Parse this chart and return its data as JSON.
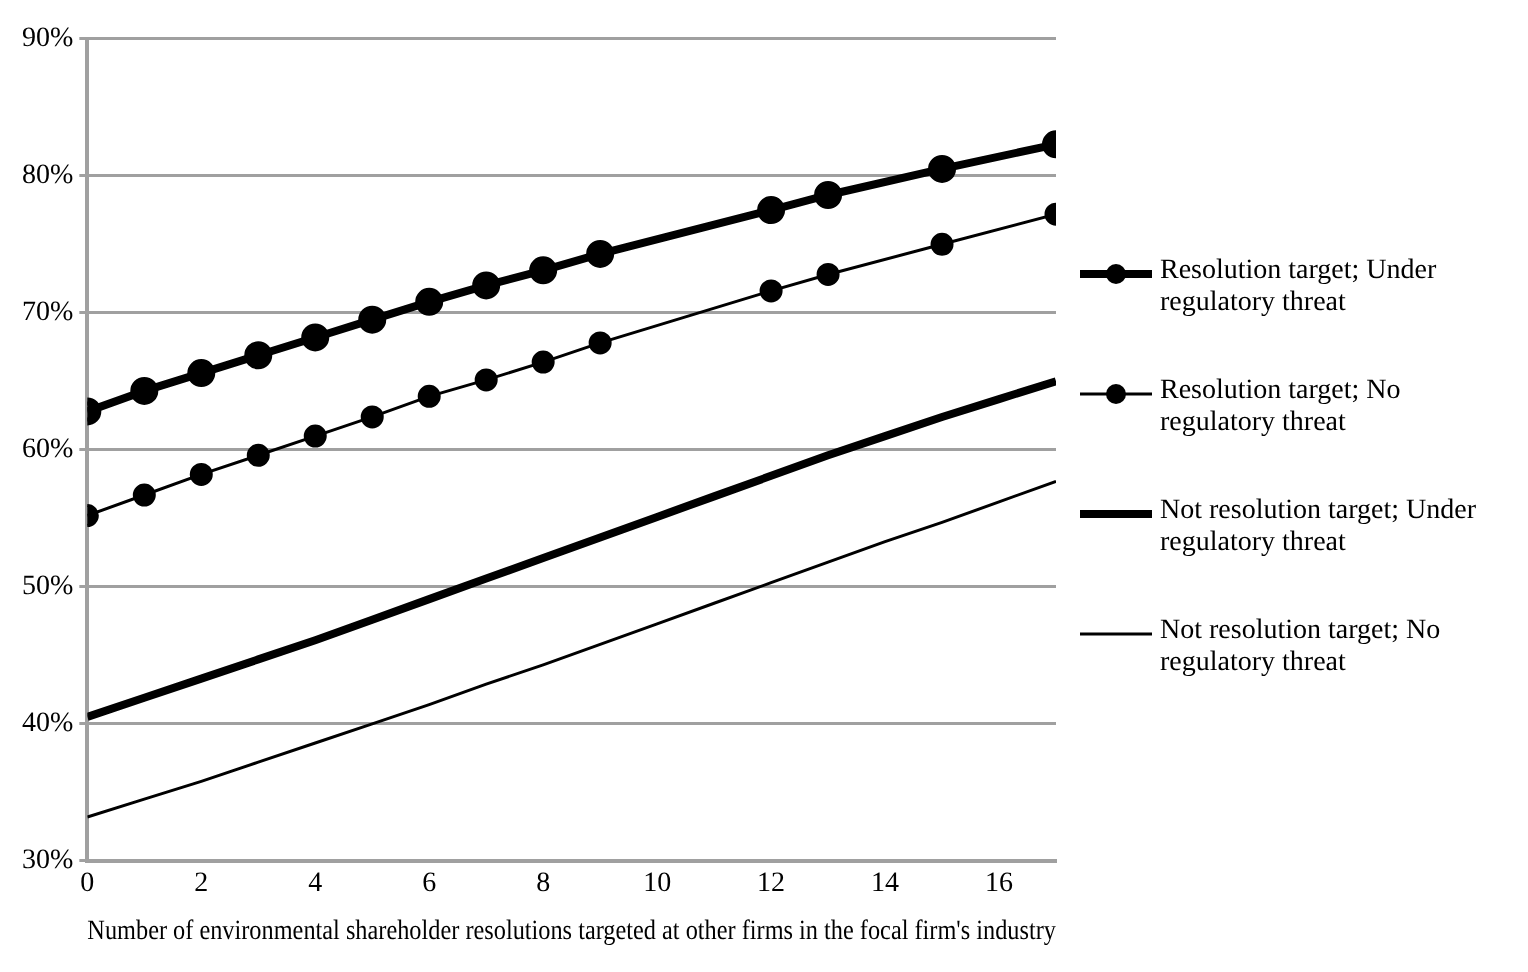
{
  "chart_data": {
    "type": "line",
    "xlabel": "Number of environmental shareholder resolutions targeted at other firms in the focal firm's industry",
    "xlim": [
      0,
      17
    ],
    "xticks": [
      0,
      2,
      4,
      6,
      8,
      10,
      12,
      14,
      16
    ],
    "ylim": [
      30,
      90
    ],
    "yticks": [
      {
        "value": 30,
        "label": "30%"
      },
      {
        "value": 40,
        "label": "40%"
      },
      {
        "value": 50,
        "label": "50%"
      },
      {
        "value": 60,
        "label": "60%"
      },
      {
        "value": 70,
        "label": "70%"
      },
      {
        "value": 80,
        "label": "80%"
      },
      {
        "value": 90,
        "label": "90%"
      }
    ],
    "grid": "y",
    "legend": "right",
    "series": [
      {
        "name": "Resolution target; Under regulatory threat",
        "color": "#000000",
        "marker": "circle",
        "x": [
          0,
          1,
          2,
          3,
          4,
          5,
          6,
          7,
          8,
          9,
          12,
          13,
          15,
          17
        ],
        "values": [
          62.8,
          64.3,
          65.6,
          66.9,
          68.2,
          69.5,
          70.8,
          72.0,
          73.1,
          74.3,
          77.5,
          78.6,
          80.5,
          82.3
        ]
      },
      {
        "name": "Resolution target; No regulatory threat",
        "color": "#000000",
        "marker": "circle",
        "x": [
          0,
          1,
          2,
          3,
          4,
          5,
          6,
          7,
          8,
          9,
          12,
          13,
          15,
          17
        ],
        "values": [
          55.2,
          56.7,
          58.2,
          59.6,
          61.0,
          62.4,
          63.9,
          65.1,
          66.4,
          67.8,
          71.6,
          72.8,
          75.0,
          77.2
        ]
      },
      {
        "name": "Not resolution target; Under regulatory threat",
        "color": "#000000",
        "marker": "none",
        "x": [
          0,
          1,
          2,
          3,
          4,
          5,
          6,
          7,
          8,
          9,
          10,
          11,
          12,
          13,
          14,
          15,
          16,
          17
        ],
        "values": [
          40.5,
          41.9,
          43.3,
          44.7,
          46.1,
          47.6,
          49.1,
          50.6,
          52.1,
          53.6,
          55.1,
          56.6,
          58.1,
          59.6,
          61.0,
          62.4,
          63.7,
          65.0
        ]
      },
      {
        "name": "Not resolution target; No regulatory threat",
        "color": "#000000",
        "marker": "none",
        "x": [
          0,
          1,
          2,
          3,
          4,
          5,
          6,
          7,
          8,
          9,
          10,
          11,
          12,
          13,
          14,
          15,
          16,
          17
        ],
        "values": [
          33.2,
          34.5,
          35.8,
          37.2,
          38.6,
          40.0,
          41.4,
          42.9,
          44.3,
          45.8,
          47.3,
          48.8,
          50.3,
          51.8,
          53.3,
          54.7,
          56.2,
          57.7
        ]
      }
    ]
  }
}
